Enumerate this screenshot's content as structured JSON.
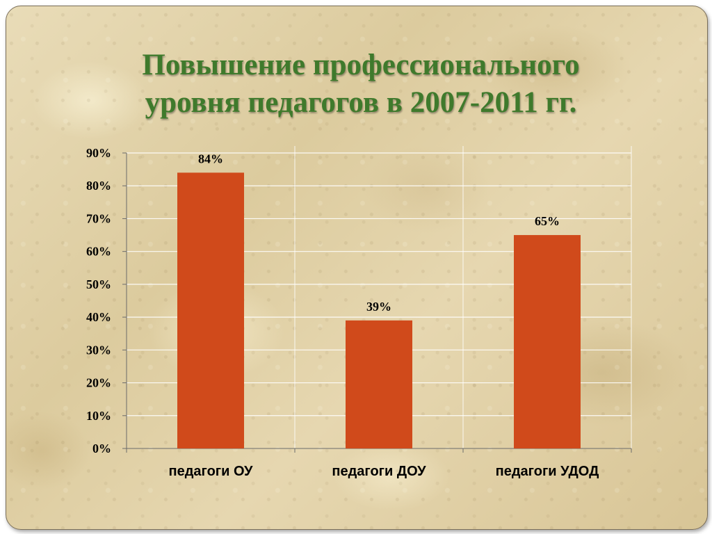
{
  "slide": {
    "title_line1": "Повышение профессионального",
    "title_line2": "уровня педагогов в 2007-2011 гг.",
    "title_color": "#3f7a2c"
  },
  "chart_data": {
    "type": "bar",
    "categories": [
      "педагоги ОУ",
      "педагоги ДОУ",
      "педагоги УДОД"
    ],
    "values": [
      84,
      39,
      65
    ],
    "data_labels": [
      "84%",
      "39%",
      "65%"
    ],
    "ylim": [
      0,
      90
    ],
    "yticks": [
      0,
      10,
      20,
      30,
      40,
      50,
      60,
      70,
      80,
      90
    ],
    "ytick_labels": [
      "0%",
      "10%",
      "20%",
      "30%",
      "40%",
      "50%",
      "60%",
      "70%",
      "80%",
      "90%"
    ],
    "grid": true,
    "legend": "none",
    "bar_color": "#d04a1b"
  }
}
